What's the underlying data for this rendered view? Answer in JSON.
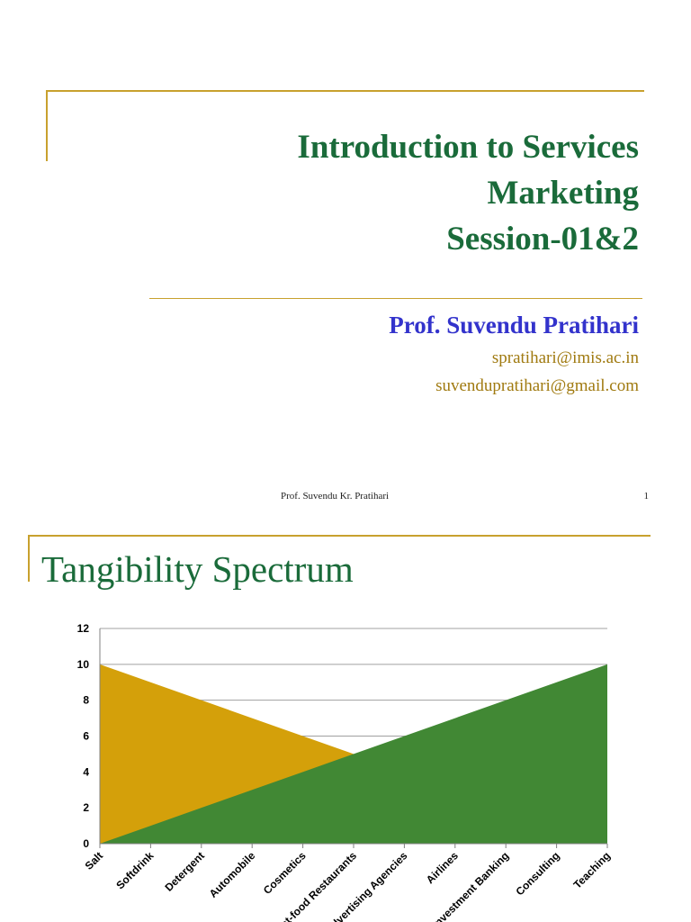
{
  "slide1": {
    "title_lines": [
      "Introduction to Services",
      "Marketing",
      "Session-01&2"
    ],
    "author": "Prof. Suvendu Pratihari",
    "emails": [
      "spratihari@imis.ac.in",
      "suvendupratihari@gmail.com"
    ],
    "footer": {
      "name": "Prof. Suvendu Kr. Pratihari",
      "page": "1"
    }
  },
  "slide2": {
    "title": "Tangibility Spectrum"
  },
  "colors": {
    "title_green": "#1a6b3a",
    "author_blue": "#3333cc",
    "email_gold": "#a07a10",
    "rule_gold": "#c8a12e",
    "area_tangible": "#d4a00a",
    "area_intangible": "#418834"
  },
  "chart_data": {
    "type": "area",
    "categories": [
      "Salt",
      "Softdrink",
      "Detergent",
      "Automobile",
      "Cosmetics",
      "Fast-food Restaurants",
      "Advertising Agencies",
      "Airlines",
      "Investment Banking",
      "Consulting",
      "Teaching"
    ],
    "series": [
      {
        "values": [
          10,
          9,
          8,
          7,
          6,
          5,
          4,
          3,
          2,
          1,
          0
        ],
        "color": "#d4a00a"
      },
      {
        "values": [
          0,
          1,
          2,
          3,
          4,
          5,
          6,
          7,
          8,
          9,
          10
        ],
        "color": "#418834"
      }
    ],
    "yticks": [
      "0",
      "2",
      "4",
      "6",
      "8",
      "10",
      "12"
    ],
    "ylim": [
      0,
      12
    ],
    "grid": true
  }
}
